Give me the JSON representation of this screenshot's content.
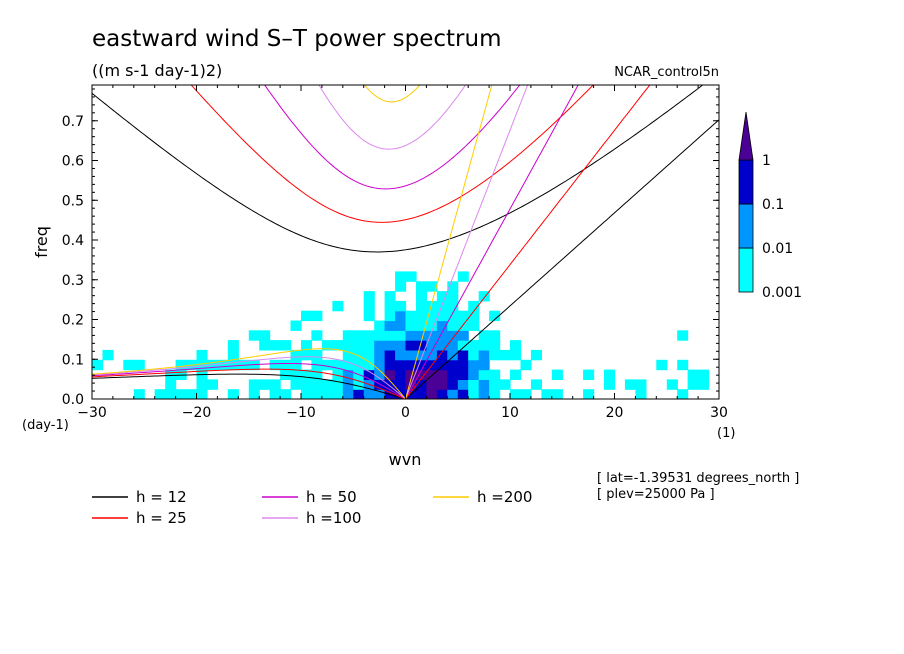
{
  "chart_data": {
    "type": "heatmap",
    "title": "eastward wind S–T power spectrum",
    "subtitle": "((m s-1 day-1)2)",
    "run_label": "NCAR_control5n",
    "xlabel": "wvn",
    "ylabel": "freq",
    "x_unit": "(1)",
    "y_unit": "(day-1)",
    "xlim": [
      -30,
      30
    ],
    "ylim": [
      0,
      0.79
    ],
    "x_ticks": [
      -30,
      -20,
      -10,
      0,
      10,
      20,
      30
    ],
    "y_ticks": [
      0.0,
      0.1,
      0.2,
      0.3,
      0.4,
      0.5,
      0.6,
      0.7
    ],
    "x_tick_labels": [
      "−30",
      "−20",
      "−10",
      "0",
      "10",
      "20",
      "30"
    ],
    "y_tick_labels": [
      "0.0",
      "0.1",
      "0.2",
      "0.3",
      "0.4",
      "0.5",
      "0.6",
      "0.7"
    ],
    "colorbar": {
      "levels": [
        0.001,
        0.01,
        0.1,
        1
      ],
      "labels": [
        "0.001",
        "0.01",
        "0.1",
        "1"
      ],
      "colors": [
        "#00ffff",
        "#0096ff",
        "#0000cc",
        "#4b0096"
      ]
    },
    "dispersion_curves": [
      {
        "name": "h = 12",
        "h": 12,
        "color": "#000000"
      },
      {
        "name": "h = 25",
        "h": 25,
        "color": "#ff0000"
      },
      {
        "name": "h = 50",
        "h": 50,
        "color": "#cc00cc"
      },
      {
        "name": "h =100",
        "h": 100,
        "color": "#dd88ee"
      },
      {
        "name": "h =200",
        "h": 200,
        "color": "#ffcc00"
      }
    ],
    "annotations": {
      "lat": "[ lat=-1.39531 degrees_north ]",
      "plev": "[ plev=25000 Pa ]"
    }
  }
}
